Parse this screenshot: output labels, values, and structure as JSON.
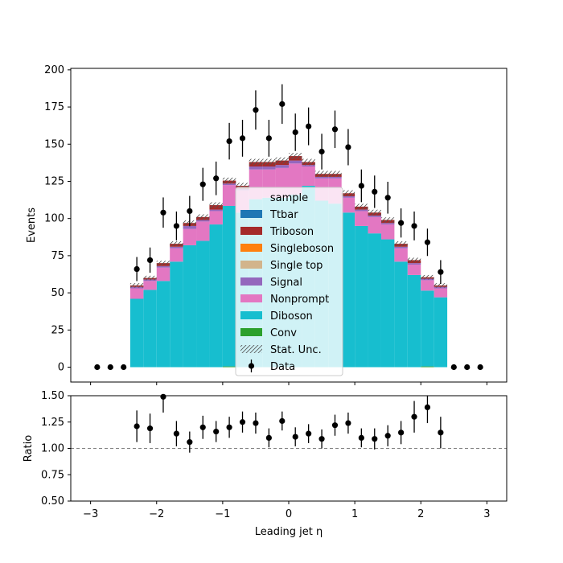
{
  "chart_data": [
    {
      "type": "stacked-histogram",
      "ylabel": "Events",
      "xlim": [
        -3.3,
        3.3
      ],
      "ylim": [
        -10,
        201
      ],
      "yticks": [
        0,
        25,
        50,
        75,
        100,
        125,
        150,
        175,
        200
      ],
      "bins": [
        -2.4,
        -2.2,
        -2.0,
        -1.8,
        -1.6,
        -1.4,
        -1.2,
        -1.0,
        -0.8,
        -0.6,
        -0.4,
        -0.2,
        0.0,
        0.2,
        0.4,
        0.6,
        0.8,
        1.0,
        1.2,
        1.4,
        1.6,
        1.8,
        2.0,
        2.2,
        2.4
      ],
      "stack_order": [
        "Conv",
        "Diboson",
        "Nonprompt",
        "Signal",
        "Single top",
        "Singleboson",
        "Triboson",
        "Ttbar"
      ],
      "series": [
        {
          "name": "Conv",
          "color": "#2ca02c",
          "values": [
            0,
            0,
            0,
            0,
            0,
            0,
            0,
            0.5,
            0,
            0,
            0,
            0,
            0,
            0,
            0,
            0,
            0,
            0,
            0,
            0,
            0,
            0,
            0.5,
            0
          ]
        },
        {
          "name": "Diboson",
          "color": "#17becf",
          "values": [
            46,
            52,
            58,
            71,
            82,
            85,
            96,
            108,
            104,
            113,
            114,
            114,
            116,
            122,
            112,
            110,
            104,
            95,
            90,
            86,
            71,
            62,
            51,
            47
          ]
        },
        {
          "name": "Nonprompt",
          "color": "#e377c2",
          "values": [
            7,
            6,
            9,
            9,
            11,
            13,
            9,
            14,
            15,
            20,
            19,
            20,
            21,
            13,
            15,
            17,
            10,
            10,
            11,
            10,
            9,
            7,
            7,
            6
          ]
        },
        {
          "name": "Signal",
          "color": "#9467bd",
          "values": [
            1,
            1,
            1,
            1,
            2,
            1,
            1,
            1,
            1,
            2,
            2,
            2,
            2,
            1,
            1,
            1,
            1,
            1,
            1,
            1,
            1,
            1,
            1,
            1
          ]
        },
        {
          "name": "Single top",
          "color": "#d2b48c",
          "values": [
            0,
            0,
            0,
            0,
            0,
            0,
            0,
            0,
            0,
            0,
            0,
            0,
            0,
            0,
            0,
            0,
            0,
            0,
            0,
            0,
            0,
            0,
            0,
            0
          ]
        },
        {
          "name": "Singleboson",
          "color": "#ff7f0e",
          "values": [
            0,
            0,
            0,
            0,
            0,
            0,
            0,
            0,
            0,
            0,
            0,
            0,
            0,
            0,
            0,
            0,
            0,
            0,
            0,
            0,
            0,
            0,
            0,
            0
          ]
        },
        {
          "name": "Triboson",
          "color": "#a52a2a",
          "values": [
            1,
            1,
            2,
            2,
            2,
            2,
            3,
            2,
            2,
            3,
            3,
            3,
            3,
            2,
            2,
            2,
            2,
            2,
            2,
            2,
            2,
            2,
            1,
            1
          ]
        },
        {
          "name": "Ttbar",
          "color": "#1f77b4",
          "values": [
            0,
            0,
            0,
            0,
            0,
            0,
            0,
            0,
            0,
            0,
            0,
            0,
            0,
            0,
            0,
            0,
            0,
            0,
            0,
            0,
            0,
            0,
            0,
            0
          ]
        }
      ],
      "stat_unc": {
        "name": "Stat. Unc.",
        "values": [
          1.5,
          1.5,
          1.6,
          1.7,
          1.8,
          1.8,
          1.9,
          2.0,
          2.0,
          2.1,
          2.1,
          2.1,
          2.1,
          2.1,
          2.0,
          2.0,
          2.0,
          1.9,
          1.9,
          1.8,
          1.7,
          1.6,
          1.5,
          1.5
        ]
      },
      "data": {
        "name": "Data",
        "x": [
          -2.9,
          -2.7,
          -2.5,
          -2.3,
          -2.1,
          -1.9,
          -1.7,
          -1.5,
          -1.3,
          -1.1,
          -0.9,
          -0.7,
          -0.5,
          -0.3,
          -0.1,
          0.1,
          0.3,
          0.5,
          0.7,
          0.9,
          1.1,
          1.3,
          1.5,
          1.7,
          1.9,
          2.1,
          2.3,
          2.5,
          2.7,
          2.9
        ],
        "y": [
          0,
          0,
          0,
          66,
          72,
          104,
          95,
          105,
          123,
          127,
          152,
          154,
          173,
          154,
          177,
          158,
          162,
          145,
          160,
          148,
          122,
          118,
          114,
          97,
          95,
          84,
          64,
          0,
          0,
          0
        ],
        "yerr": [
          0,
          0,
          0,
          8.1,
          8.5,
          10.2,
          9.7,
          10.2,
          11.1,
          11.3,
          12.3,
          12.4,
          13.2,
          12.4,
          13.3,
          12.6,
          12.7,
          12.0,
          12.6,
          12.2,
          11.0,
          10.9,
          10.7,
          9.8,
          9.7,
          9.2,
          8.0,
          0,
          0,
          0
        ]
      },
      "legend": {
        "title": "sample",
        "placement": "lower center",
        "entries": [
          "Ttbar",
          "Triboson",
          "Singleboson",
          "Single top",
          "Signal",
          "Nonprompt",
          "Diboson",
          "Conv",
          "Stat. Unc.",
          "Data"
        ]
      }
    },
    {
      "type": "ratio",
      "xlabel": "Leading jet  η",
      "ylabel": "Ratio",
      "xlim": [
        -3.3,
        3.3
      ],
      "ylim": [
        0.5,
        1.5
      ],
      "xticks": [
        -3,
        -2,
        -1,
        0,
        1,
        2,
        3
      ],
      "yticks": [
        0.5,
        0.75,
        1.0,
        1.25,
        1.5
      ],
      "reference_line": 1.0,
      "x": [
        -2.3,
        -2.1,
        -1.9,
        -1.7,
        -1.5,
        -1.3,
        -1.1,
        -0.9,
        -0.7,
        -0.5,
        -0.3,
        -0.1,
        0.1,
        0.3,
        0.5,
        0.7,
        0.9,
        1.1,
        1.3,
        1.5,
        1.7,
        1.9,
        2.1,
        2.3
      ],
      "y": [
        1.21,
        1.19,
        1.49,
        1.14,
        1.06,
        1.2,
        1.16,
        1.2,
        1.25,
        1.24,
        1.1,
        1.26,
        1.11,
        1.14,
        1.09,
        1.22,
        1.24,
        1.1,
        1.09,
        1.12,
        1.15,
        1.3,
        1.39,
        1.15
      ],
      "yerr": [
        0.15,
        0.14,
        0.15,
        0.12,
        0.1,
        0.11,
        0.1,
        0.1,
        0.1,
        0.1,
        0.09,
        0.09,
        0.09,
        0.09,
        0.09,
        0.1,
        0.1,
        0.09,
        0.1,
        0.1,
        0.11,
        0.15,
        0.15,
        0.15
      ]
    }
  ]
}
